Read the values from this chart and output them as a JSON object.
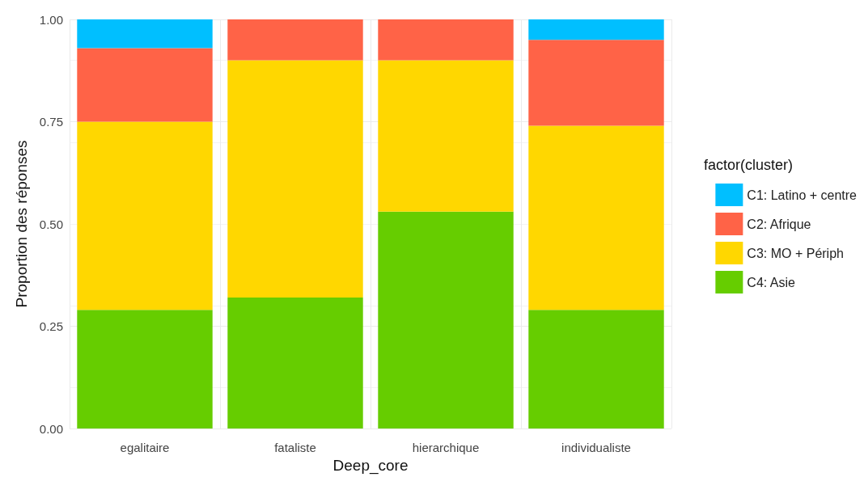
{
  "chart_data": {
    "type": "bar",
    "stacked": true,
    "xlabel": "Deep_core",
    "ylabel": "Proportion des réponses",
    "legend_title": "factor(cluster)",
    "legend": "right",
    "grid": true,
    "categories": [
      "egalitaire",
      "fataliste",
      "hierarchique",
      "individualiste"
    ],
    "ylim": [
      0,
      1
    ],
    "yticks": [
      {
        "value": 0,
        "label": "0.00"
      },
      {
        "value": 0.25,
        "label": "0.25"
      },
      {
        "value": 0.5,
        "label": "0.50"
      },
      {
        "value": 0.75,
        "label": "0.75"
      },
      {
        "value": 1,
        "label": "1.00"
      }
    ],
    "series": [
      {
        "name": "C4: Asie",
        "color": "#66cd00",
        "values": [
          0.29,
          0.32,
          0.53,
          0.29
        ]
      },
      {
        "name": "C3: MO + Périph",
        "color": "#ffd700",
        "values": [
          0.46,
          0.58,
          0.37,
          0.45
        ]
      },
      {
        "name": "C2: Afrique",
        "color": "#ff6347",
        "values": [
          0.18,
          0.1,
          0.1,
          0.21
        ]
      },
      {
        "name": "C1: Latino + centre",
        "color": "#00bfff",
        "values": [
          0.07,
          0,
          0,
          0.05
        ]
      }
    ]
  }
}
